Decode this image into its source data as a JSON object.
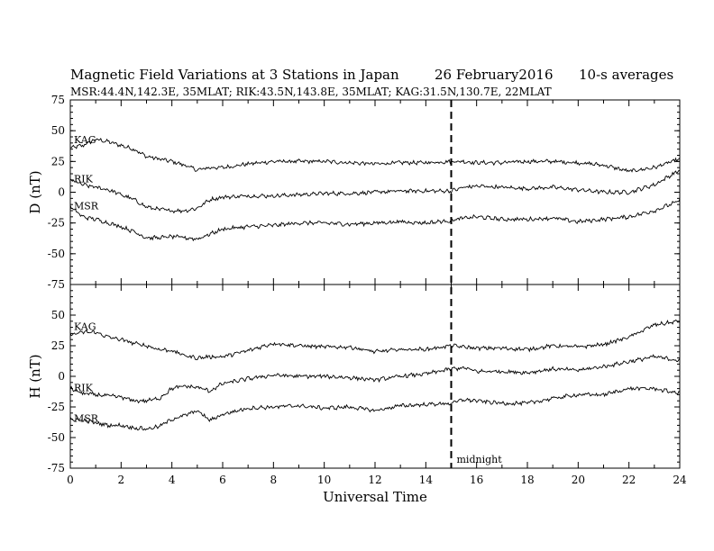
{
  "header": {
    "title": "Magnetic Field Variations at 3 Stations in Japan",
    "date": "26 February2016",
    "averaging": "10-s averages",
    "stations": "MSR:44.4N,142.3E, 35MLAT;  RIK:43.5N,143.8E, 35MLAT;  KAG:31.5N,130.7E, 22MLAT"
  },
  "chart_data": [
    {
      "type": "line",
      "panel": "top",
      "ylabel": "D (nT)",
      "ylim": [
        -75,
        75
      ],
      "yticks": [
        75,
        50,
        25,
        0,
        -25,
        -50,
        -75
      ],
      "xlim": [
        0,
        24
      ],
      "series": [
        {
          "name": "KAG",
          "x": [
            0,
            0.5,
            1,
            1.5,
            2,
            2.5,
            3,
            3.5,
            4,
            4.5,
            5,
            5.5,
            6,
            7,
            8,
            9,
            10,
            11,
            12,
            13,
            14,
            15,
            15.5,
            16,
            17,
            18,
            19,
            20,
            21,
            22,
            23,
            24
          ],
          "values": [
            36,
            38,
            43,
            41,
            38,
            35,
            29,
            27,
            25,
            22,
            18,
            20,
            20,
            23,
            25,
            25,
            25,
            24,
            23,
            24,
            24,
            25,
            25,
            24,
            24,
            25,
            25,
            24,
            22,
            17,
            20,
            27
          ]
        },
        {
          "name": "RIK",
          "x": [
            0,
            0.5,
            1,
            1.5,
            2,
            2.5,
            3,
            3.5,
            4,
            4.5,
            5,
            5.5,
            6,
            7,
            8,
            9,
            10,
            11,
            12,
            13,
            14,
            15,
            15.5,
            16,
            17,
            18,
            19,
            20,
            21,
            22,
            23,
            24
          ],
          "values": [
            10,
            6,
            4,
            2,
            -2,
            -6,
            -12,
            -14,
            -15,
            -15,
            -13,
            -6,
            -4,
            -3,
            -3,
            -2,
            -1,
            -1,
            0,
            1,
            1,
            1,
            4,
            5,
            4,
            3,
            4,
            2,
            0,
            0,
            6,
            18
          ]
        },
        {
          "name": "MSR",
          "x": [
            0,
            0.5,
            1,
            1.5,
            2,
            2.5,
            3,
            3.5,
            4,
            4.5,
            5,
            5.5,
            6,
            7,
            8,
            9,
            10,
            11,
            12,
            13,
            14,
            15,
            15.5,
            16,
            17,
            18,
            19,
            20,
            21,
            22,
            23,
            24
          ],
          "values": [
            -12,
            -20,
            -22,
            -25,
            -28,
            -32,
            -37,
            -37,
            -36,
            -37,
            -38,
            -34,
            -30,
            -28,
            -27,
            -25,
            -25,
            -26,
            -25,
            -24,
            -25,
            -23,
            -21,
            -20,
            -22,
            -22,
            -21,
            -24,
            -22,
            -20,
            -15,
            -7
          ]
        }
      ]
    },
    {
      "type": "line",
      "panel": "bottom",
      "ylabel": "H (nT)",
      "ylim": [
        -75,
        75
      ],
      "yticks": [
        50,
        25,
        0,
        -25,
        -50,
        -75
      ],
      "xlim": [
        0,
        24
      ],
      "xlabel": "Universal Time",
      "xticks": [
        0,
        2,
        4,
        6,
        8,
        10,
        12,
        14,
        16,
        18,
        20,
        22,
        24
      ],
      "series": [
        {
          "name": "KAG",
          "x": [
            0,
            0.5,
            1,
            1.5,
            2,
            2.5,
            3,
            3.5,
            4,
            4.5,
            5,
            5.5,
            6,
            7,
            8,
            9,
            10,
            11,
            12,
            13,
            14,
            15,
            15.5,
            16,
            17,
            18,
            19,
            20,
            21,
            22,
            23,
            24
          ],
          "values": [
            34,
            36,
            36,
            32,
            30,
            27,
            25,
            22,
            21,
            17,
            15,
            16,
            16,
            21,
            27,
            25,
            24,
            24,
            20,
            22,
            22,
            25,
            24,
            23,
            23,
            22,
            25,
            24,
            26,
            32,
            42,
            45
          ]
        },
        {
          "name": "RIK",
          "x": [
            0,
            0.5,
            1,
            1.5,
            2,
            2.5,
            3,
            3.5,
            4,
            4.5,
            5,
            5.5,
            6,
            7,
            8,
            9,
            10,
            11,
            12,
            13,
            14,
            15,
            15.5,
            16,
            17,
            18,
            19,
            20,
            21,
            22,
            23,
            24
          ],
          "values": [
            -10,
            -14,
            -15,
            -16,
            -17,
            -20,
            -20,
            -18,
            -10,
            -8,
            -9,
            -12,
            -6,
            -2,
            1,
            0,
            0,
            -1,
            -3,
            0,
            2,
            6,
            7,
            4,
            4,
            3,
            6,
            5,
            8,
            12,
            16,
            13
          ]
        },
        {
          "name": "MSR",
          "x": [
            0,
            0.5,
            1,
            1.5,
            2,
            2.5,
            3,
            3.5,
            4,
            4.5,
            5,
            5.5,
            6,
            7,
            8,
            9,
            10,
            11,
            12,
            13,
            14,
            15,
            15.5,
            16,
            17,
            18,
            19,
            20,
            21,
            22,
            23,
            24
          ],
          "values": [
            -35,
            -36,
            -38,
            -40,
            -40,
            -42,
            -43,
            -41,
            -35,
            -32,
            -28,
            -36,
            -31,
            -26,
            -25,
            -24,
            -26,
            -25,
            -28,
            -24,
            -23,
            -22,
            -19,
            -20,
            -22,
            -22,
            -18,
            -15,
            -15,
            -10,
            -10,
            -14
          ]
        }
      ]
    }
  ],
  "marker": {
    "x": 15,
    "label": "midnight"
  }
}
